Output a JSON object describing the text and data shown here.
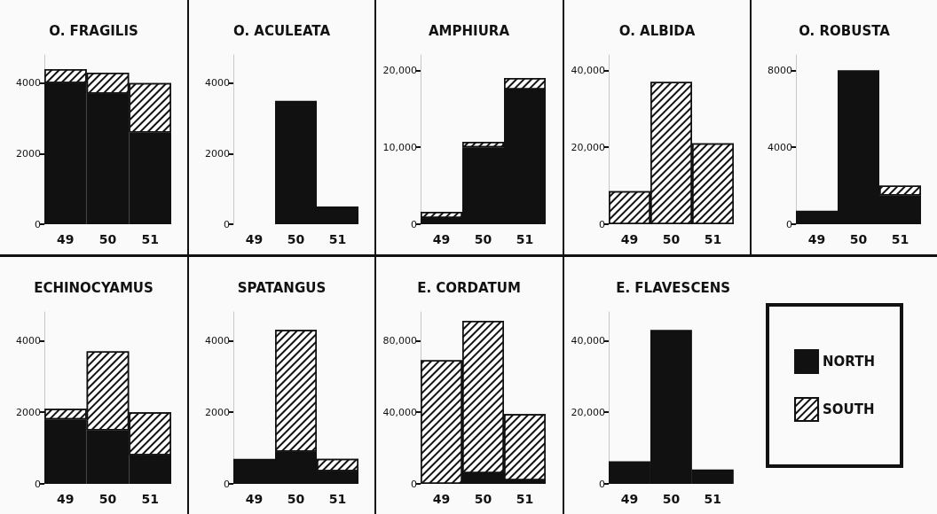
{
  "chart_data": [
    {
      "type": "bar",
      "title": "O. FRAGILIS",
      "categories": [
        "49",
        "50",
        "51"
      ],
      "stacked": true,
      "ylim": [
        0,
        4800
      ],
      "yticks": [
        0,
        2000,
        4000
      ],
      "grid": false,
      "legend": false,
      "series": [
        {
          "color": "#111111",
          "values": [
            4000,
            3700,
            2600
          ]
        },
        {
          "color": "#ffffff",
          "values": [
            400,
            600,
            1400
          ]
        }
      ]
    },
    {
      "type": "bar",
      "title": "O. ACULEATA",
      "categories": [
        "49",
        "50",
        "51"
      ],
      "stacked": true,
      "ylim": [
        0,
        4800
      ],
      "yticks": [
        0,
        2000,
        4000
      ],
      "grid": false,
      "legend": false,
      "series": [
        {
          "color": "#111111",
          "values": [
            0,
            3500,
            500
          ]
        },
        {
          "color": "#ffffff",
          "values": [
            0,
            0,
            0
          ]
        }
      ]
    },
    {
      "type": "bar",
      "title": "AMPHIURA",
      "categories": [
        "49",
        "50",
        "51"
      ],
      "stacked": true,
      "ylim": [
        0,
        22000
      ],
      "yticks": [
        0,
        {
          "value": 10000,
          "label": "10,000"
        },
        {
          "value": 20000,
          "label": "20,000"
        }
      ],
      "grid": false,
      "legend": false,
      "series": [
        {
          "color": "#111111",
          "values": [
            800,
            10000,
            17500
          ]
        },
        {
          "color": "#ffffff",
          "values": [
            800,
            700,
            1500
          ]
        }
      ]
    },
    {
      "type": "bar",
      "title": "O. ALBIDA",
      "categories": [
        "49",
        "50",
        "51"
      ],
      "stacked": true,
      "ylim": [
        0,
        44000
      ],
      "yticks": [
        0,
        {
          "value": 20000,
          "label": "20,000"
        },
        {
          "value": 40000,
          "label": "40,000"
        }
      ],
      "grid": false,
      "legend": false,
      "series": [
        {
          "color": "#111111",
          "values": [
            0,
            0,
            0
          ]
        },
        {
          "color": "#ffffff",
          "values": [
            8600,
            37000,
            21000
          ]
        }
      ]
    },
    {
      "type": "bar",
      "title": "O. ROBUSTA",
      "categories": [
        "49",
        "50",
        "51"
      ],
      "stacked": true,
      "ylim": [
        0,
        8800
      ],
      "yticks": [
        0,
        4000,
        8000
      ],
      "grid": false,
      "legend": false,
      "series": [
        {
          "color": "#111111",
          "values": [
            700,
            8000,
            1500
          ]
        },
        {
          "color": "#ffffff",
          "values": [
            0,
            0,
            500
          ]
        }
      ]
    },
    {
      "type": "bar",
      "title": "ECHINOCYAMUS",
      "categories": [
        "49",
        "50",
        "51"
      ],
      "stacked": true,
      "ylim": [
        0,
        4800
      ],
      "yticks": [
        0,
        2000,
        4000
      ],
      "grid": false,
      "legend": false,
      "series": [
        {
          "color": "#111111",
          "values": [
            1800,
            1500,
            800
          ]
        },
        {
          "color": "#ffffff",
          "values": [
            300,
            2200,
            1200
          ]
        }
      ]
    },
    {
      "type": "bar",
      "title": "SPATANGUS",
      "categories": [
        "49",
        "50",
        "51"
      ],
      "stacked": true,
      "ylim": [
        0,
        4800
      ],
      "yticks": [
        0,
        2000,
        4000
      ],
      "grid": false,
      "legend": false,
      "series": [
        {
          "color": "#111111",
          "values": [
            700,
            900,
            350
          ]
        },
        {
          "color": "#ffffff",
          "values": [
            0,
            3400,
            350
          ]
        }
      ]
    },
    {
      "type": "bar",
      "title": "E. CORDATUM",
      "categories": [
        "49",
        "50",
        "51"
      ],
      "stacked": true,
      "ylim": [
        0,
        96000
      ],
      "yticks": [
        0,
        {
          "value": 40000,
          "label": "40,000"
        },
        {
          "value": 80000,
          "label": "80,000"
        }
      ],
      "grid": false,
      "legend": false,
      "series": [
        {
          "color": "#111111",
          "values": [
            0,
            6000,
            2000
          ]
        },
        {
          "color": "#ffffff",
          "values": [
            69000,
            85000,
            37000
          ]
        }
      ]
    },
    {
      "type": "bar",
      "title": "E. FLAVESCENS",
      "categories": [
        "49",
        "50",
        "51"
      ],
      "stacked": true,
      "ylim": [
        0,
        48000
      ],
      "yticks": [
        0,
        {
          "value": 20000,
          "label": "20,000"
        },
        {
          "value": 40000,
          "label": "40,000"
        }
      ],
      "grid": false,
      "legend": "right",
      "series": [
        {
          "name": "NORTH",
          "color": "#111111",
          "values": [
            6300,
            43000,
            4000
          ]
        },
        {
          "name": "SOUTH",
          "color": "#ffffff",
          "values": [
            0,
            0,
            0
          ]
        }
      ]
    }
  ]
}
